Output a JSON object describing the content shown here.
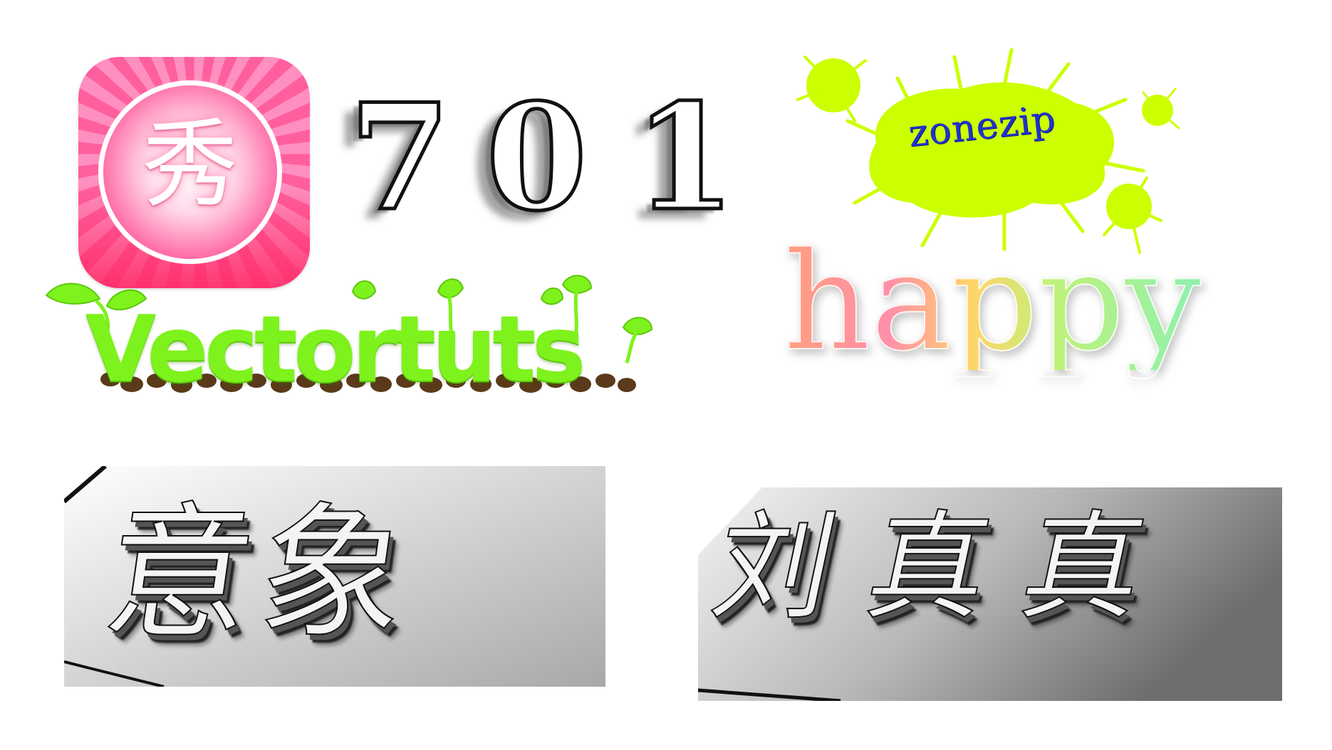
{
  "app_icon": {
    "glyph": "秀",
    "colors": {
      "primary": "#ff5f9e",
      "ring": "#ffffff"
    }
  },
  "numbers": {
    "digits": [
      "7",
      "0",
      "1"
    ]
  },
  "splat": {
    "text": "zonezip",
    "colors": {
      "splat": "#ccff00",
      "text": "#2233cc"
    }
  },
  "vectortuts": {
    "text": "Vectortuts",
    "colors": {
      "letters": "#7ef21c",
      "soil": "#5a3a1a"
    }
  },
  "happy": {
    "text": "happy"
  },
  "panels": {
    "left": {
      "text": "意象"
    },
    "right": {
      "text": "刘真真"
    }
  }
}
